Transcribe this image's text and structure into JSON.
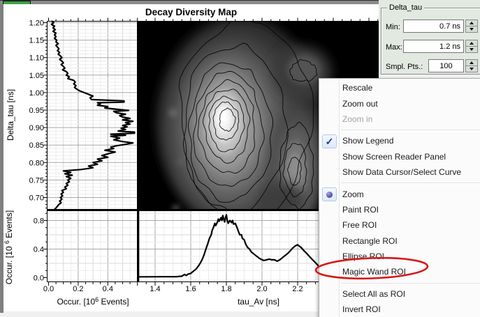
{
  "window": {
    "background": "#f0f0f0",
    "top_bar_color": "#8a8a8a",
    "green_button_color": "#3ca342"
  },
  "title": "Decay Diversity Map",
  "delta_tau_panel": {
    "title": "Delta_tau",
    "min_label": "Min:",
    "min_value": "0.7 ns",
    "max_label": "Max:",
    "max_value": "1.2 ns",
    "smpl_label": "Smpl. Pts.:",
    "smpl_value": "100",
    "background": "#e1e9e1"
  },
  "menu": {
    "annotation_color": "#d81616",
    "check_glyph": "✓",
    "items": [
      {
        "label": "Rescale",
        "type": "normal"
      },
      {
        "label": "Zoom out",
        "type": "normal"
      },
      {
        "label": "Zoom in",
        "type": "disabled"
      },
      {
        "type": "separator"
      },
      {
        "label": "Show Legend",
        "type": "checked"
      },
      {
        "label": "Show Screen Reader Panel",
        "type": "normal"
      },
      {
        "label": "Show Data Cursor/Select Curve",
        "type": "normal"
      },
      {
        "type": "separator"
      },
      {
        "label": "Zoom",
        "type": "radio"
      },
      {
        "label": "Paint ROI",
        "type": "normal"
      },
      {
        "label": "Free ROI",
        "type": "normal"
      },
      {
        "label": "Rectangle ROI",
        "type": "normal"
      },
      {
        "label": "Ellipse ROI",
        "type": "normal"
      },
      {
        "label": "Magic Wand ROI",
        "type": "normal",
        "annotated": true
      },
      {
        "type": "separator"
      },
      {
        "label": "Select All as ROI",
        "type": "normal"
      },
      {
        "label": "Invert ROI",
        "type": "normal"
      },
      {
        "type": "separator"
      }
    ]
  },
  "chart_data": [
    {
      "type": "line",
      "name": "delta_tau_marginal_histogram",
      "orientation": "vertical",
      "xlabel": "Occur. [10^6 Events]",
      "ylabel": "Delta_tau [ns]",
      "xticks": [
        0.0,
        0.2,
        0.4
      ],
      "yticks": [
        1.2,
        1.15,
        1.1,
        1.05,
        1.0,
        0.95,
        0.9,
        0.85,
        0.8,
        0.75,
        0.7
      ],
      "xlim": [
        0,
        0.6
      ],
      "ylim": [
        0.665,
        1.205
      ],
      "points_delta_occ": [
        [
          1.205,
          0.02
        ],
        [
          1.2,
          0.035
        ],
        [
          1.195,
          0.02
        ],
        [
          1.19,
          0.04
        ],
        [
          1.185,
          0.03
        ],
        [
          1.18,
          0.045
        ],
        [
          1.175,
          0.03
        ],
        [
          1.17,
          0.05
        ],
        [
          1.165,
          0.04
        ],
        [
          1.16,
          0.05
        ],
        [
          1.155,
          0.04
        ],
        [
          1.15,
          0.055
        ],
        [
          1.145,
          0.05
        ],
        [
          1.14,
          0.065
        ],
        [
          1.135,
          0.05
        ],
        [
          1.13,
          0.06
        ],
        [
          1.125,
          0.07
        ],
        [
          1.12,
          0.06
        ],
        [
          1.115,
          0.075
        ],
        [
          1.11,
          0.065
        ],
        [
          1.105,
          0.08
        ],
        [
          1.1,
          0.09
        ],
        [
          1.095,
          0.075
        ],
        [
          1.09,
          0.09
        ],
        [
          1.085,
          0.1
        ],
        [
          1.08,
          0.085
        ],
        [
          1.075,
          0.1
        ],
        [
          1.07,
          0.11
        ],
        [
          1.065,
          0.095
        ],
        [
          1.06,
          0.12
        ],
        [
          1.055,
          0.13
        ],
        [
          1.05,
          0.12
        ],
        [
          1.045,
          0.14
        ],
        [
          1.04,
          0.13
        ],
        [
          1.035,
          0.17
        ],
        [
          1.03,
          0.18
        ],
        [
          1.025,
          0.17
        ],
        [
          1.02,
          0.185
        ],
        [
          1.015,
          0.175
        ],
        [
          1.01,
          0.19
        ],
        [
          1.005,
          0.21
        ],
        [
          1.0,
          0.24
        ],
        [
          0.995,
          0.27
        ],
        [
          0.99,
          0.3
        ],
        [
          0.985,
          0.28
        ],
        [
          0.98,
          0.29
        ],
        [
          0.976,
          0.51
        ],
        [
          0.973,
          0.51
        ],
        [
          0.971,
          0.33
        ],
        [
          0.968,
          0.35
        ],
        [
          0.964,
          0.33
        ],
        [
          0.96,
          0.4
        ],
        [
          0.956,
          0.38
        ],
        [
          0.952,
          0.47
        ],
        [
          0.949,
          0.54
        ],
        [
          0.946,
          0.44
        ],
        [
          0.942,
          0.46
        ],
        [
          0.938,
          0.52
        ],
        [
          0.934,
          0.48
        ],
        [
          0.93,
          0.5
        ],
        [
          0.926,
          0.55
        ],
        [
          0.922,
          0.5
        ],
        [
          0.918,
          0.57
        ],
        [
          0.914,
          0.52
        ],
        [
          0.91,
          0.55
        ],
        [
          0.906,
          0.5
        ],
        [
          0.902,
          0.53
        ],
        [
          0.898,
          0.49
        ],
        [
          0.894,
          0.52
        ],
        [
          0.89,
          0.47
        ],
        [
          0.887,
          0.58
        ],
        [
          0.884,
          0.58
        ],
        [
          0.881,
          0.42
        ],
        [
          0.878,
          0.52
        ],
        [
          0.875,
          0.42
        ],
        [
          0.87,
          0.48
        ],
        [
          0.865,
          0.44
        ],
        [
          0.86,
          0.5
        ],
        [
          0.856,
          0.57
        ],
        [
          0.852,
          0.52
        ],
        [
          0.848,
          0.46
        ],
        [
          0.844,
          0.42
        ],
        [
          0.84,
          0.44
        ],
        [
          0.835,
          0.38
        ],
        [
          0.83,
          0.45
        ],
        [
          0.825,
          0.4
        ],
        [
          0.82,
          0.36
        ],
        [
          0.815,
          0.4
        ],
        [
          0.81,
          0.33
        ],
        [
          0.805,
          0.36
        ],
        [
          0.8,
          0.3
        ],
        [
          0.795,
          0.33
        ],
        [
          0.79,
          0.27
        ],
        [
          0.785,
          0.3
        ],
        [
          0.78,
          0.22
        ],
        [
          0.776,
          0.1
        ],
        [
          0.772,
          0.15
        ],
        [
          0.768,
          0.11
        ],
        [
          0.764,
          0.16
        ],
        [
          0.76,
          0.12
        ],
        [
          0.755,
          0.15
        ],
        [
          0.75,
          0.13
        ],
        [
          0.745,
          0.14
        ],
        [
          0.74,
          0.12
        ],
        [
          0.735,
          0.13
        ],
        [
          0.73,
          0.11
        ],
        [
          0.725,
          0.12
        ],
        [
          0.72,
          0.09
        ],
        [
          0.715,
          0.1
        ],
        [
          0.71,
          0.085
        ],
        [
          0.705,
          0.095
        ],
        [
          0.7,
          0.08
        ],
        [
          0.695,
          0.09
        ],
        [
          0.69,
          0.075
        ],
        [
          0.685,
          0.085
        ],
        [
          0.68,
          0.07
        ],
        [
          0.675,
          0.06
        ],
        [
          0.67,
          0.05
        ],
        [
          0.667,
          0.04
        ]
      ]
    },
    {
      "type": "heatmap",
      "name": "decay_diversity_map",
      "xlabel": "tau_Av [ns]",
      "ylabel": "Delta_tau [ns]",
      "colormap": "grayscale on black, black contour lines",
      "contour_levels": 9,
      "peaks": [
        {
          "tau_av": 1.78,
          "delta_tau": 0.95,
          "intensity": "primary bright maximum"
        },
        {
          "tau_av": 2.2,
          "delta_tau": 0.86,
          "intensity": "secondary elongated lobe"
        }
      ]
    },
    {
      "type": "line",
      "name": "tau_av_marginal_histogram",
      "xlabel": "tau_Av [ns]",
      "ylabel": "Occur. [10^6 Events]",
      "xticks": [
        1.4,
        1.6,
        1.8,
        2.0,
        2.2
      ],
      "yticks": [
        0.0,
        0.4,
        0.8
      ],
      "xlim": [
        1.31,
        2.66
      ],
      "ylim": [
        -0.06,
        0.95
      ],
      "points_tau_occ": [
        [
          1.31,
          0.012
        ],
        [
          1.36,
          0.012
        ],
        [
          1.42,
          0.013
        ],
        [
          1.48,
          0.013
        ],
        [
          1.52,
          0.014
        ],
        [
          1.55,
          0.02
        ],
        [
          1.565,
          0.045
        ],
        [
          1.575,
          0.03
        ],
        [
          1.585,
          0.05
        ],
        [
          1.6,
          0.06
        ],
        [
          1.615,
          0.09
        ],
        [
          1.63,
          0.12
        ],
        [
          1.645,
          0.17
        ],
        [
          1.655,
          0.21
        ],
        [
          1.665,
          0.26
        ],
        [
          1.675,
          0.32
        ],
        [
          1.685,
          0.4
        ],
        [
          1.695,
          0.47
        ],
        [
          1.705,
          0.55
        ],
        [
          1.715,
          0.6
        ],
        [
          1.72,
          0.66
        ],
        [
          1.73,
          0.72
        ],
        [
          1.735,
          0.76
        ],
        [
          1.74,
          0.73
        ],
        [
          1.75,
          0.78
        ],
        [
          1.755,
          0.82
        ],
        [
          1.76,
          0.79
        ],
        [
          1.77,
          0.84
        ],
        [
          1.775,
          0.8
        ],
        [
          1.78,
          0.87
        ],
        [
          1.785,
          0.82
        ],
        [
          1.79,
          0.78
        ],
        [
          1.795,
          0.84
        ],
        [
          1.8,
          0.88
        ],
        [
          1.805,
          0.8
        ],
        [
          1.81,
          0.76
        ],
        [
          1.82,
          0.8
        ],
        [
          1.83,
          0.77
        ],
        [
          1.835,
          0.8
        ],
        [
          1.84,
          0.75
        ],
        [
          1.85,
          0.76
        ],
        [
          1.86,
          0.7
        ],
        [
          1.87,
          0.63
        ],
        [
          1.875,
          0.6
        ],
        [
          1.885,
          0.6
        ],
        [
          1.89,
          0.55
        ],
        [
          1.9,
          0.53
        ],
        [
          1.91,
          0.46
        ],
        [
          1.92,
          0.42
        ],
        [
          1.93,
          0.4
        ],
        [
          1.94,
          0.36
        ],
        [
          1.955,
          0.33
        ],
        [
          1.97,
          0.3
        ],
        [
          1.985,
          0.27
        ],
        [
          2.0,
          0.25
        ],
        [
          2.01,
          0.24
        ],
        [
          2.025,
          0.25
        ],
        [
          2.04,
          0.26
        ],
        [
          2.055,
          0.25
        ],
        [
          2.07,
          0.25
        ],
        [
          2.085,
          0.23
        ],
        [
          2.1,
          0.25
        ],
        [
          2.115,
          0.28
        ],
        [
          2.13,
          0.31
        ],
        [
          2.145,
          0.34
        ],
        [
          2.16,
          0.38
        ],
        [
          2.175,
          0.42
        ],
        [
          2.19,
          0.45
        ],
        [
          2.2,
          0.46
        ],
        [
          2.21,
          0.44
        ],
        [
          2.22,
          0.42
        ],
        [
          2.235,
          0.38
        ],
        [
          2.25,
          0.34
        ],
        [
          2.265,
          0.3
        ],
        [
          2.28,
          0.26
        ],
        [
          2.3,
          0.21
        ],
        [
          2.315,
          0.17
        ],
        [
          2.33,
          0.13
        ],
        [
          2.345,
          0.11
        ],
        [
          2.36,
          0.1
        ],
        [
          2.38,
          0.09
        ],
        [
          2.42,
          0.075
        ],
        [
          2.46,
          0.07
        ]
      ]
    }
  ]
}
